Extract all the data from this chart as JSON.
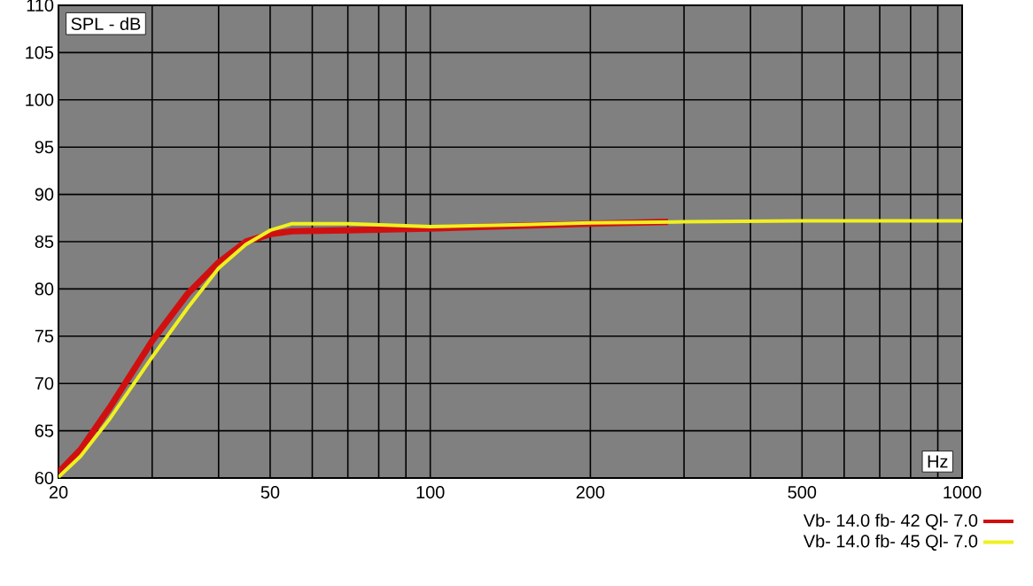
{
  "chart_data": {
    "type": "line",
    "xlabel": "Hz",
    "ylabel": "SPL - dB",
    "log": "x",
    "grid": true,
    "legend": "bottom",
    "marker": "none",
    "line_style": "solid",
    "xlim": [
      20,
      1000
    ],
    "ylim": [
      60,
      110
    ],
    "xticks": [
      20,
      {
        "value": 30,
        "label": null
      },
      {
        "value": 40,
        "label": null
      },
      50,
      {
        "value": 60,
        "label": null
      },
      {
        "value": 70,
        "label": null
      },
      {
        "value": 80,
        "label": null
      },
      {
        "value": 90,
        "label": null
      },
      100,
      200,
      {
        "value": 300,
        "label": null
      },
      {
        "value": 400,
        "label": null
      },
      500,
      {
        "value": 600,
        "label": null
      },
      {
        "value": 700,
        "label": null
      },
      {
        "value": 800,
        "label": null
      },
      {
        "value": 900,
        "label": null
      },
      1000
    ],
    "yticks": [
      60,
      65,
      70,
      75,
      80,
      85,
      90,
      95,
      100,
      105,
      110
    ],
    "series": [
      {
        "name": "Vb- 14.0 fb- 42 Ql- 7.0",
        "color": "#d01010",
        "x": [
          20,
          22,
          25,
          30,
          35,
          40,
          45,
          50,
          55,
          70,
          100,
          150,
          200,
          280
        ],
        "values": [
          60.6,
          63,
          67.5,
          74.5,
          79.5,
          82.8,
          85,
          85.8,
          86.1,
          86.2,
          86.4,
          86.7,
          86.9,
          87.1
        ]
      },
      {
        "name": "Vb- 14.0 fb- 45 Ql- 7.0",
        "color": "#f0f020",
        "x": [
          20,
          22,
          25,
          30,
          35,
          40,
          45,
          50,
          55,
          70,
          100,
          150,
          200,
          300,
          500,
          1000
        ],
        "values": [
          60.1,
          62.3,
          66.3,
          72.8,
          78,
          82.2,
          84.7,
          86.2,
          86.9,
          86.9,
          86.6,
          86.8,
          87,
          87.1,
          87.2,
          87.2
        ]
      }
    ]
  }
}
